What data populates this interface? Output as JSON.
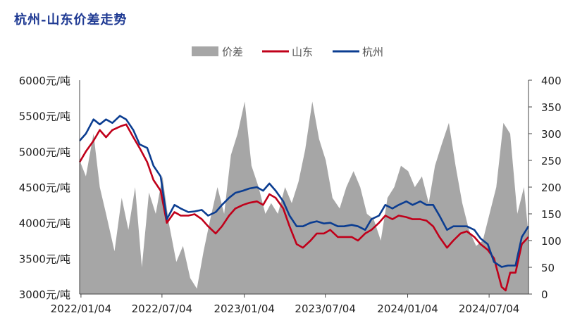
{
  "title": "杭州-山东价差走势",
  "chart_data": {
    "type": "area+line",
    "title": "杭州-山东价差走势",
    "legend": {
      "placement": "top-center",
      "items": [
        "价差",
        "山东",
        "杭州"
      ]
    },
    "colors": {
      "spread": "#a6a6a6",
      "shandong": "#c0001a",
      "hangzhou": "#0b3d91",
      "title": "#1f3a93"
    },
    "x_range": [
      "2022-01-01",
      "2024-09-30"
    ],
    "x_ticks": [
      "2022/01/04",
      "2022/07/04",
      "2023/01/04",
      "2023/07/04",
      "2024/01/04",
      "2024/07/04"
    ],
    "y_left": {
      "unit": "元/吨",
      "ylim": [
        3000,
        6000
      ],
      "ticks": [
        "3000元/吨",
        "3500元/吨",
        "4000元/吨",
        "4500元/吨",
        "5000元/吨",
        "5500元/吨",
        "6000元/吨"
      ]
    },
    "y_right": {
      "ylim": [
        0,
        400
      ],
      "ticks": [
        "0",
        "50",
        "100",
        "150",
        "200",
        "250",
        "300",
        "350",
        "400"
      ]
    },
    "series": [
      {
        "name": "价差",
        "axis": "right",
        "kind": "area",
        "points": [
          [
            "2022-01-01",
            250
          ],
          [
            "2022-01-15",
            220
          ],
          [
            "2022-02-01",
            300
          ],
          [
            "2022-02-15",
            200
          ],
          [
            "2022-03-01",
            150
          ],
          [
            "2022-03-20",
            80
          ],
          [
            "2022-04-05",
            180
          ],
          [
            "2022-04-20",
            120
          ],
          [
            "2022-05-05",
            200
          ],
          [
            "2022-05-20",
            50
          ],
          [
            "2022-06-05",
            190
          ],
          [
            "2022-06-20",
            150
          ],
          [
            "2022-07-05",
            220
          ],
          [
            "2022-07-20",
            130
          ],
          [
            "2022-08-05",
            60
          ],
          [
            "2022-08-20",
            90
          ],
          [
            "2022-09-05",
            30
          ],
          [
            "2022-09-20",
            10
          ],
          [
            "2022-10-05",
            80
          ],
          [
            "2022-10-20",
            140
          ],
          [
            "2022-11-05",
            200
          ],
          [
            "2022-11-20",
            150
          ],
          [
            "2022-12-05",
            260
          ],
          [
            "2022-12-20",
            300
          ],
          [
            "2023-01-05",
            360
          ],
          [
            "2023-01-20",
            240
          ],
          [
            "2023-02-05",
            200
          ],
          [
            "2023-02-20",
            150
          ],
          [
            "2023-03-05",
            170
          ],
          [
            "2023-03-20",
            150
          ],
          [
            "2023-04-05",
            200
          ],
          [
            "2023-04-20",
            170
          ],
          [
            "2023-05-05",
            210
          ],
          [
            "2023-05-20",
            270
          ],
          [
            "2023-06-05",
            360
          ],
          [
            "2023-06-20",
            290
          ],
          [
            "2023-07-05",
            250
          ],
          [
            "2023-07-20",
            180
          ],
          [
            "2023-08-05",
            160
          ],
          [
            "2023-08-20",
            200
          ],
          [
            "2023-09-05",
            230
          ],
          [
            "2023-09-20",
            200
          ],
          [
            "2023-10-05",
            150
          ],
          [
            "2023-10-20",
            140
          ],
          [
            "2023-11-05",
            100
          ],
          [
            "2023-11-20",
            180
          ],
          [
            "2023-12-05",
            200
          ],
          [
            "2023-12-20",
            240
          ],
          [
            "2024-01-05",
            230
          ],
          [
            "2024-01-20",
            200
          ],
          [
            "2024-02-05",
            220
          ],
          [
            "2024-02-20",
            170
          ],
          [
            "2024-03-05",
            240
          ],
          [
            "2024-03-20",
            280
          ],
          [
            "2024-04-05",
            320
          ],
          [
            "2024-04-20",
            240
          ],
          [
            "2024-05-05",
            170
          ],
          [
            "2024-05-20",
            120
          ],
          [
            "2024-06-05",
            90
          ],
          [
            "2024-06-20",
            100
          ],
          [
            "2024-07-05",
            150
          ],
          [
            "2024-07-20",
            200
          ],
          [
            "2024-08-05",
            320
          ],
          [
            "2024-08-20",
            300
          ],
          [
            "2024-09-05",
            150
          ],
          [
            "2024-09-20",
            200
          ],
          [
            "2024-09-30",
            110
          ]
        ]
      },
      {
        "name": "山东",
        "axis": "left",
        "kind": "line",
        "points": [
          [
            "2022-01-01",
            4850
          ],
          [
            "2022-01-15",
            5000
          ],
          [
            "2022-02-01",
            5150
          ],
          [
            "2022-02-15",
            5300
          ],
          [
            "2022-03-01",
            5200
          ],
          [
            "2022-03-15",
            5300
          ],
          [
            "2022-04-01",
            5350
          ],
          [
            "2022-04-15",
            5380
          ],
          [
            "2022-05-01",
            5200
          ],
          [
            "2022-05-15",
            5050
          ],
          [
            "2022-06-01",
            4850
          ],
          [
            "2022-06-15",
            4600
          ],
          [
            "2022-07-01",
            4450
          ],
          [
            "2022-07-15",
            4000
          ],
          [
            "2022-08-01",
            4150
          ],
          [
            "2022-08-15",
            4100
          ],
          [
            "2022-09-01",
            4100
          ],
          [
            "2022-09-15",
            4120
          ],
          [
            "2022-10-01",
            4050
          ],
          [
            "2022-10-15",
            3950
          ],
          [
            "2022-11-01",
            3850
          ],
          [
            "2022-11-15",
            3950
          ],
          [
            "2022-12-01",
            4100
          ],
          [
            "2022-12-15",
            4200
          ],
          [
            "2023-01-01",
            4250
          ],
          [
            "2023-01-15",
            4280
          ],
          [
            "2023-02-01",
            4300
          ],
          [
            "2023-02-15",
            4250
          ],
          [
            "2023-03-01",
            4400
          ],
          [
            "2023-03-15",
            4350
          ],
          [
            "2023-04-01",
            4200
          ],
          [
            "2023-04-15",
            3950
          ],
          [
            "2023-05-01",
            3700
          ],
          [
            "2023-05-15",
            3650
          ],
          [
            "2023-06-01",
            3750
          ],
          [
            "2023-06-15",
            3850
          ],
          [
            "2023-07-01",
            3850
          ],
          [
            "2023-07-15",
            3900
          ],
          [
            "2023-08-01",
            3800
          ],
          [
            "2023-08-15",
            3800
          ],
          [
            "2023-09-01",
            3800
          ],
          [
            "2023-09-15",
            3750
          ],
          [
            "2023-10-01",
            3850
          ],
          [
            "2023-10-15",
            3900
          ],
          [
            "2023-11-01",
            4000
          ],
          [
            "2023-11-15",
            4100
          ],
          [
            "2023-12-01",
            4050
          ],
          [
            "2023-12-15",
            4100
          ],
          [
            "2024-01-01",
            4080
          ],
          [
            "2024-01-15",
            4050
          ],
          [
            "2024-02-01",
            4050
          ],
          [
            "2024-02-15",
            4030
          ],
          [
            "2024-03-01",
            3950
          ],
          [
            "2024-03-15",
            3800
          ],
          [
            "2024-04-01",
            3650
          ],
          [
            "2024-04-15",
            3750
          ],
          [
            "2024-05-01",
            3850
          ],
          [
            "2024-05-15",
            3880
          ],
          [
            "2024-06-01",
            3800
          ],
          [
            "2024-06-15",
            3700
          ],
          [
            "2024-07-01",
            3620
          ],
          [
            "2024-07-15",
            3500
          ],
          [
            "2024-08-01",
            3100
          ],
          [
            "2024-08-10",
            3050
          ],
          [
            "2024-08-20",
            3300
          ],
          [
            "2024-09-01",
            3300
          ],
          [
            "2024-09-15",
            3700
          ],
          [
            "2024-09-30",
            3800
          ]
        ]
      },
      {
        "name": "杭州",
        "axis": "left",
        "kind": "line",
        "points": [
          [
            "2022-01-01",
            5150
          ],
          [
            "2022-01-15",
            5250
          ],
          [
            "2022-02-01",
            5450
          ],
          [
            "2022-02-15",
            5380
          ],
          [
            "2022-03-01",
            5450
          ],
          [
            "2022-03-15",
            5400
          ],
          [
            "2022-04-01",
            5500
          ],
          [
            "2022-04-15",
            5450
          ],
          [
            "2022-05-01",
            5300
          ],
          [
            "2022-05-15",
            5100
          ],
          [
            "2022-06-01",
            5050
          ],
          [
            "2022-06-15",
            4800
          ],
          [
            "2022-07-01",
            4650
          ],
          [
            "2022-07-15",
            4050
          ],
          [
            "2022-08-01",
            4250
          ],
          [
            "2022-08-15",
            4200
          ],
          [
            "2022-09-01",
            4150
          ],
          [
            "2022-09-15",
            4160
          ],
          [
            "2022-10-01",
            4180
          ],
          [
            "2022-10-15",
            4100
          ],
          [
            "2022-11-01",
            4150
          ],
          [
            "2022-11-15",
            4250
          ],
          [
            "2022-12-01",
            4350
          ],
          [
            "2022-12-15",
            4420
          ],
          [
            "2023-01-01",
            4450
          ],
          [
            "2023-01-15",
            4480
          ],
          [
            "2023-02-01",
            4500
          ],
          [
            "2023-02-15",
            4450
          ],
          [
            "2023-03-01",
            4550
          ],
          [
            "2023-03-15",
            4450
          ],
          [
            "2023-04-01",
            4300
          ],
          [
            "2023-04-15",
            4100
          ],
          [
            "2023-05-01",
            3950
          ],
          [
            "2023-05-15",
            3950
          ],
          [
            "2023-06-01",
            4000
          ],
          [
            "2023-06-15",
            4020
          ],
          [
            "2023-07-01",
            3990
          ],
          [
            "2023-07-15",
            4000
          ],
          [
            "2023-08-01",
            3950
          ],
          [
            "2023-08-15",
            3950
          ],
          [
            "2023-09-01",
            3970
          ],
          [
            "2023-09-15",
            3950
          ],
          [
            "2023-10-01",
            3900
          ],
          [
            "2023-10-15",
            4050
          ],
          [
            "2023-11-01",
            4100
          ],
          [
            "2023-11-15",
            4250
          ],
          [
            "2023-12-01",
            4200
          ],
          [
            "2023-12-15",
            4250
          ],
          [
            "2024-01-01",
            4300
          ],
          [
            "2024-01-15",
            4250
          ],
          [
            "2024-02-01",
            4300
          ],
          [
            "2024-02-15",
            4250
          ],
          [
            "2024-03-01",
            4250
          ],
          [
            "2024-03-15",
            4100
          ],
          [
            "2024-04-01",
            3900
          ],
          [
            "2024-04-15",
            3950
          ],
          [
            "2024-05-01",
            3950
          ],
          [
            "2024-05-15",
            3950
          ],
          [
            "2024-06-01",
            3900
          ],
          [
            "2024-06-15",
            3780
          ],
          [
            "2024-07-01",
            3700
          ],
          [
            "2024-07-15",
            3450
          ],
          [
            "2024-08-01",
            3380
          ],
          [
            "2024-08-15",
            3400
          ],
          [
            "2024-09-01",
            3400
          ],
          [
            "2024-09-15",
            3800
          ],
          [
            "2024-09-30",
            3950
          ]
        ]
      }
    ]
  }
}
